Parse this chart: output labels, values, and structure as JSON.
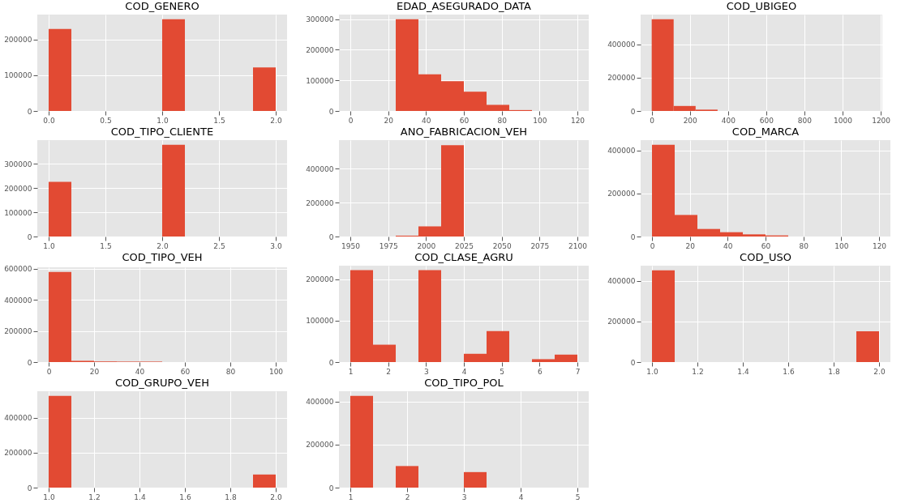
{
  "chart_data": [
    {
      "type": "histogram",
      "title": "COD_GENERO",
      "bins": [
        0,
        0.2,
        0.4,
        0.6,
        0.8,
        1.0,
        1.2,
        1.4,
        1.6,
        1.8,
        2.0
      ],
      "values": [
        230000,
        0,
        0,
        0,
        0,
        257000,
        0,
        0,
        0,
        122000
      ],
      "color": "#e24a33",
      "xlim": [
        -0.1,
        2.1
      ],
      "xticks": [
        {
          "value": 0,
          "label": "0.0"
        },
        {
          "value": 0.5,
          "label": "0.5"
        },
        {
          "value": 1,
          "label": "1.0"
        },
        {
          "value": 1.5,
          "label": "1.5"
        },
        {
          "value": 2,
          "label": "2.0"
        }
      ],
      "ylim": [
        0,
        270000
      ],
      "yticks": [
        0,
        100000,
        200000
      ],
      "grid": true
    },
    {
      "type": "histogram",
      "title": "EDAD_ASEGURADO_DATA",
      "bins": [
        0,
        12,
        24,
        36,
        48,
        60,
        72,
        84,
        96,
        108,
        120
      ],
      "values": [
        0,
        0,
        300000,
        120000,
        97000,
        63000,
        20000,
        3000,
        0,
        0
      ],
      "color": "#e24a33",
      "xlim": [
        -6,
        126
      ],
      "xticks": [
        0,
        20,
        40,
        60,
        80,
        100,
        120
      ],
      "ylim": [
        0,
        315000
      ],
      "yticks": [
        0,
        100000,
        200000,
        300000
      ],
      "grid": true
    },
    {
      "type": "histogram",
      "title": "COD_UBIGEO",
      "bins": [
        0,
        115,
        230,
        345,
        460,
        575,
        690,
        805,
        920,
        1035,
        1150
      ],
      "values": [
        550000,
        30000,
        8000,
        0,
        0,
        0,
        0,
        0,
        0,
        0
      ],
      "color": "#e24a33",
      "xlim": [
        -58,
        1208
      ],
      "xticks": [
        0,
        200,
        400,
        600,
        800,
        1000,
        1200
      ],
      "ylim": [
        0,
        578000
      ],
      "yticks": [
        0,
        200000,
        400000
      ],
      "grid": true
    },
    {
      "type": "histogram",
      "title": "COD_TIPO_CLIENTE",
      "bins": [
        1,
        1.2,
        1.4,
        1.6,
        1.8,
        2.0,
        2.2,
        2.4,
        2.6,
        2.8,
        3.0
      ],
      "values": [
        225000,
        0,
        0,
        0,
        0,
        378000,
        0,
        0,
        0,
        0
      ],
      "color": "#e24a33",
      "xlim": [
        0.9,
        3.1
      ],
      "xticks": [
        {
          "value": 1,
          "label": "1.0"
        },
        {
          "value": 1.5,
          "label": "1.5"
        },
        {
          "value": 2,
          "label": "2.0"
        },
        {
          "value": 2.5,
          "label": "2.5"
        },
        {
          "value": 3,
          "label": "3.0"
        }
      ],
      "ylim": [
        0,
        397000
      ],
      "yticks": [
        0,
        100000,
        200000,
        300000
      ],
      "grid": true
    },
    {
      "type": "histogram",
      "title": "ANO_FABRICACION_VEH",
      "bins": [
        1950,
        1965,
        1980,
        1995,
        2010,
        2025,
        2040,
        2055,
        2070,
        2085,
        2100
      ],
      "values": [
        0,
        0,
        5000,
        60000,
        540000,
        0,
        0,
        0,
        0,
        0
      ],
      "color": "#e24a33",
      "xlim": [
        1942.5,
        2107.5
      ],
      "xticks": [
        1950,
        1975,
        2000,
        2025,
        2050,
        2075,
        2100
      ],
      "ylim": [
        0,
        570000
      ],
      "yticks": [
        0,
        200000,
        400000
      ],
      "grid": true
    },
    {
      "type": "histogram",
      "title": "COD_MARCA",
      "bins": [
        0,
        12,
        24,
        36,
        48,
        60,
        72,
        84,
        96,
        108,
        120
      ],
      "values": [
        425000,
        100000,
        35000,
        20000,
        10000,
        5000,
        0,
        0,
        0,
        0
      ],
      "color": "#e24a33",
      "xlim": [
        -6,
        126
      ],
      "xticks": [
        0,
        20,
        40,
        60,
        80,
        100,
        120
      ],
      "ylim": [
        0,
        447000
      ],
      "yticks": [
        0,
        200000,
        400000
      ],
      "grid": true
    },
    {
      "type": "histogram",
      "title": "COD_TIPO_VEH",
      "bins": [
        0,
        10,
        20,
        30,
        40,
        50,
        60,
        70,
        80,
        90,
        100
      ],
      "values": [
        578000,
        8000,
        4000,
        3000,
        3000,
        0,
        0,
        0,
        0,
        0
      ],
      "color": "#e24a33",
      "xlim": [
        -5,
        105
      ],
      "xticks": [
        0,
        20,
        40,
        60,
        80,
        100
      ],
      "ylim": [
        0,
        608000
      ],
      "yticks": [
        0,
        200000,
        400000,
        600000
      ],
      "grid": true
    },
    {
      "type": "histogram",
      "title": "COD_CLASE_AGRU",
      "bins": [
        1,
        1.6,
        2.2,
        2.8,
        3.4,
        4.0,
        4.6,
        5.2,
        5.8,
        6.4,
        7.0
      ],
      "values": [
        222000,
        42000,
        0,
        222000,
        0,
        20000,
        75000,
        0,
        7000,
        18000
      ],
      "color": "#e24a33",
      "xlim": [
        0.7,
        7.3
      ],
      "xticks": [
        1,
        2,
        3,
        4,
        5,
        6,
        7
      ],
      "ylim": [
        0,
        233000
      ],
      "yticks": [
        0,
        100000,
        200000
      ],
      "grid": true
    },
    {
      "type": "histogram",
      "title": "COD_USO",
      "bins": [
        1.0,
        1.1,
        1.2,
        1.3,
        1.4,
        1.5,
        1.6,
        1.7,
        1.8,
        1.9,
        2.0
      ],
      "values": [
        452000,
        0,
        0,
        0,
        0,
        0,
        0,
        0,
        0,
        152000
      ],
      "color": "#e24a33",
      "xlim": [
        0.95,
        2.05
      ],
      "xticks": [
        {
          "value": 1,
          "label": "1.0"
        },
        {
          "value": 1.2,
          "label": "1.2"
        },
        {
          "value": 1.4,
          "label": "1.4"
        },
        {
          "value": 1.6,
          "label": "1.6"
        },
        {
          "value": 1.8,
          "label": "1.8"
        },
        {
          "value": 2,
          "label": "2.0"
        }
      ],
      "ylim": [
        0,
        475000
      ],
      "yticks": [
        0,
        200000,
        400000
      ],
      "grid": true
    },
    {
      "type": "histogram",
      "title": "COD_GRUPO_VEH",
      "bins": [
        1.0,
        1.1,
        1.2,
        1.3,
        1.4,
        1.5,
        1.6,
        1.7,
        1.8,
        1.9,
        2.0
      ],
      "values": [
        525000,
        0,
        0,
        0,
        0,
        0,
        0,
        0,
        0,
        75000
      ],
      "color": "#e24a33",
      "xlim": [
        0.95,
        2.05
      ],
      "xticks": [
        {
          "value": 1,
          "label": "1.0"
        },
        {
          "value": 1.2,
          "label": "1.2"
        },
        {
          "value": 1.4,
          "label": "1.4"
        },
        {
          "value": 1.6,
          "label": "1.6"
        },
        {
          "value": 1.8,
          "label": "1.8"
        },
        {
          "value": 2,
          "label": "2.0"
        }
      ],
      "ylim": [
        0,
        552000
      ],
      "yticks": [
        0,
        200000,
        400000
      ],
      "grid": true
    },
    {
      "type": "histogram",
      "title": "COD_TIPO_POL",
      "bins": [
        1,
        1.4,
        1.8,
        2.2,
        2.6,
        3.0,
        3.4,
        3.8,
        4.2,
        4.6,
        5.0
      ],
      "values": [
        425000,
        0,
        100000,
        0,
        0,
        72000,
        0,
        0,
        0,
        0
      ],
      "color": "#e24a33",
      "xlim": [
        0.8,
        5.2
      ],
      "xticks": [
        1,
        2,
        3,
        4,
        5
      ],
      "ylim": [
        0,
        447000
      ],
      "yticks": [
        0,
        200000,
        400000
      ],
      "grid": true
    }
  ]
}
